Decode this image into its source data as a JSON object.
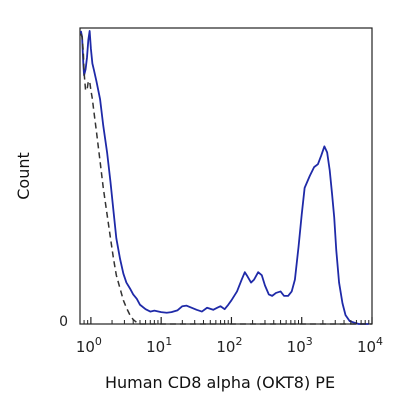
{
  "chart_data": {
    "type": "line",
    "title": "",
    "xlabel": "Human CD8 alpha (OKT8) PE",
    "ylabel": "Count",
    "x_scale": "log",
    "xlim": [
      0.7,
      10000
    ],
    "ylim": [
      0,
      100
    ],
    "x_ticks": [
      {
        "value": 1,
        "base": "10",
        "exp": "0"
      },
      {
        "value": 10,
        "base": "10",
        "exp": "1"
      },
      {
        "value": 100,
        "base": "10",
        "exp": "2"
      },
      {
        "value": 1000,
        "base": "10",
        "exp": "3"
      },
      {
        "value": 10000,
        "base": "10",
        "exp": "4"
      }
    ],
    "y_ticks": [
      {
        "value": 0,
        "label": "0"
      }
    ],
    "grid": false,
    "legend": "none",
    "series": [
      {
        "style": "solid",
        "color": "#1f2aa8",
        "x": [
          0.72,
          0.75,
          0.78,
          0.8,
          0.84,
          0.88,
          0.92,
          0.96,
          1.0,
          1.05,
          1.1,
          1.2,
          1.35,
          1.5,
          1.7,
          1.9,
          2.1,
          2.3,
          2.6,
          2.9,
          3.2,
          3.6,
          4.0,
          4.5,
          5.0,
          6.0,
          7.0,
          8.0,
          10,
          12,
          14,
          17,
          20,
          23,
          27,
          32,
          38,
          45,
          55,
          63,
          70,
          80,
          90,
          100,
          120,
          140,
          155,
          170,
          190,
          210,
          240,
          270,
          300,
          340,
          380,
          430,
          500,
          560,
          640,
          720,
          800,
          900,
          1000,
          1100,
          1300,
          1500,
          1700,
          1900,
          2100,
          2300,
          2500,
          2700,
          2900,
          3100,
          3400,
          3800,
          4200,
          4800,
          5500,
          6500,
          8000,
          9000
        ],
        "values": [
          99,
          97,
          88,
          84,
          86,
          90,
          96,
          99,
          93,
          88,
          86,
          82,
          76,
          67,
          58,
          48,
          38,
          29,
          22,
          17,
          14,
          12,
          10,
          8.5,
          6.5,
          5.0,
          4.2,
          4.5,
          4.0,
          3.8,
          4.0,
          4.6,
          6.0,
          6.2,
          5.5,
          4.8,
          4.2,
          5.5,
          4.8,
          5.5,
          6.0,
          5.0,
          6.5,
          8.0,
          11,
          15,
          17.5,
          16,
          14,
          15,
          17.5,
          16.5,
          13,
          10,
          9.5,
          10.5,
          11,
          9.5,
          9.5,
          11,
          15,
          26,
          37,
          46,
          50,
          53,
          54,
          57,
          60,
          58,
          52,
          44,
          36,
          25,
          14,
          7,
          3,
          1,
          0.5,
          0,
          0,
          0
        ]
      },
      {
        "style": "dashed",
        "color": "#333333",
        "x": [
          0.72,
          0.75,
          0.78,
          0.8,
          0.84,
          0.88,
          0.92,
          0.96,
          1.0,
          1.05,
          1.1,
          1.2,
          1.35,
          1.5,
          1.7,
          1.9,
          2.1,
          2.3,
          2.6,
          2.9,
          3.2,
          3.6,
          4.0,
          4.5,
          5.0,
          6.0,
          7.0,
          8.0,
          10,
          20,
          50,
          100,
          200,
          500,
          1000,
          2000,
          5000,
          10000
        ],
        "values": [
          98,
          97,
          92,
          85,
          79,
          79,
          82,
          82,
          79,
          76,
          72,
          65,
          55,
          46,
          37,
          29,
          22,
          16.5,
          12,
          8,
          5.5,
          3,
          1.5,
          0.5,
          0,
          0,
          0,
          0,
          0,
          0,
          0,
          0,
          0,
          0,
          0,
          0,
          0,
          0
        ]
      }
    ]
  }
}
